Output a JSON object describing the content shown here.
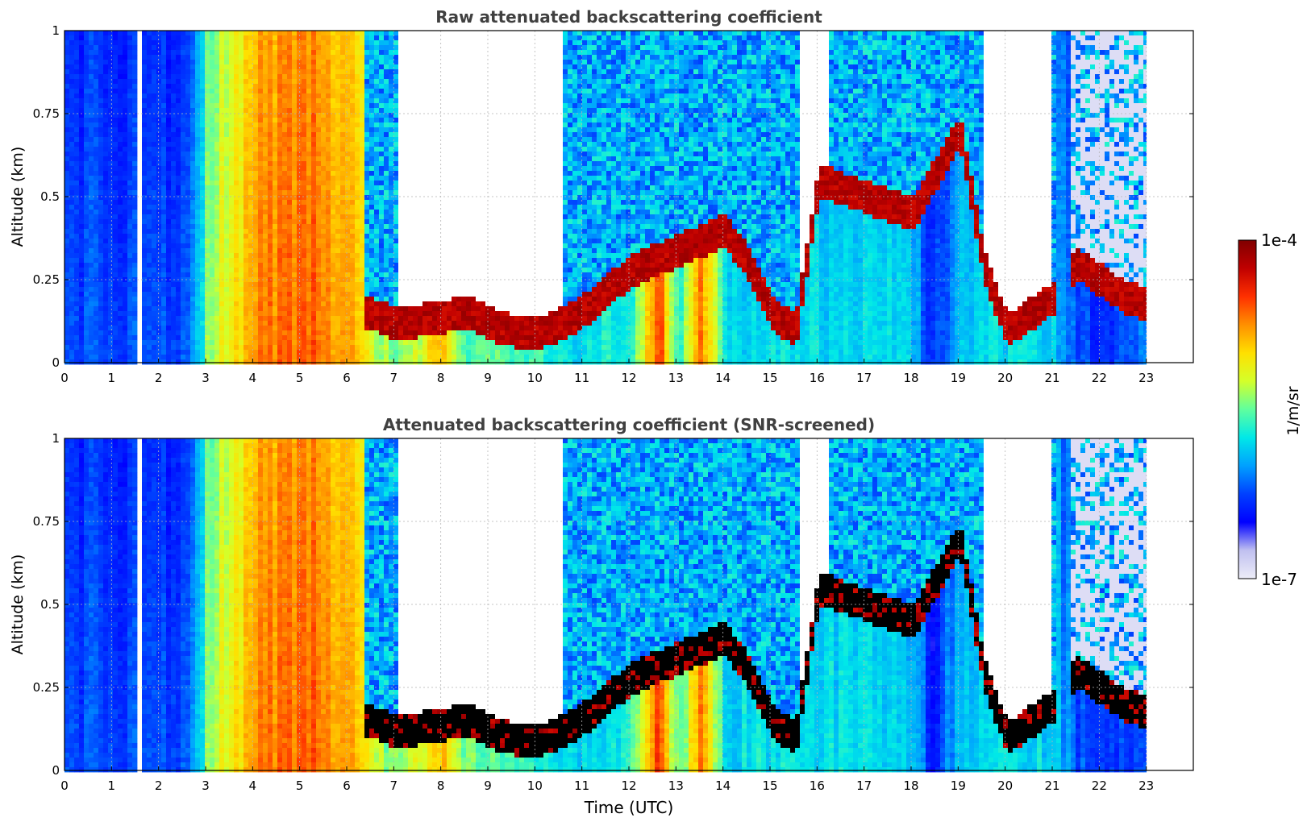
{
  "chart_data": [
    {
      "type": "heatmap",
      "title": "Raw attenuated backscattering coefficient",
      "xlabel": "",
      "ylabel": "Altitude (km)",
      "xlim": [
        0,
        24
      ],
      "ylim": [
        0,
        1
      ],
      "x_ticks": [
        "0",
        "1",
        "2",
        "3",
        "4",
        "5",
        "6",
        "7",
        "8",
        "9",
        "10",
        "11",
        "12",
        "13",
        "14",
        "15",
        "16",
        "17",
        "18",
        "19",
        "20",
        "21",
        "22",
        "23"
      ],
      "y_ticks": [
        "0",
        "0.25",
        "0.5",
        "0.75",
        "1"
      ],
      "grid": true,
      "data_end_hour": 23,
      "gap_hours": [
        [
          1.45,
          1.55
        ]
      ],
      "cloud_base_profile": {
        "hours": [
          6.5,
          7,
          7.5,
          8,
          8.5,
          9,
          9.5,
          10,
          10.5,
          11,
          11.5,
          12,
          14,
          14.5,
          15,
          15.5,
          16,
          17,
          18,
          19,
          19.5,
          20,
          20.5,
          21,
          21.5,
          22,
          22.5,
          23
        ],
        "altitude_km": [
          0.15,
          0.12,
          0.13,
          0.14,
          0.16,
          0.12,
          0.1,
          0.09,
          0.12,
          0.16,
          0.22,
          0.28,
          0.4,
          0.3,
          0.15,
          0.1,
          0.55,
          0.5,
          0.45,
          0.7,
          0.3,
          0.1,
          0.15,
          0.2,
          0.3,
          0.25,
          0.2,
          0.18
        ]
      },
      "clear_sky_intervals_hours": [
        [
          7.0,
          10.5
        ],
        [
          15.6,
          16.2
        ],
        [
          19.5,
          20.9
        ]
      ]
    },
    {
      "type": "heatmap",
      "title": "Attenuated backscattering coefficient (SNR-screened)",
      "xlabel": "Time (UTC)",
      "ylabel": "Altitude (km)",
      "xlim": [
        0,
        24
      ],
      "ylim": [
        0,
        1
      ],
      "x_ticks": [
        "0",
        "1",
        "2",
        "3",
        "4",
        "5",
        "6",
        "7",
        "8",
        "9",
        "10",
        "11",
        "12",
        "13",
        "14",
        "15",
        "16",
        "17",
        "18",
        "19",
        "20",
        "21",
        "22",
        "23"
      ],
      "y_ticks": [
        "0",
        "0.25",
        "0.5",
        "0.75",
        "1"
      ],
      "grid": true,
      "data_end_hour": 23,
      "gap_hours": [
        [
          1.45,
          1.55
        ]
      ],
      "screened_color": "#000000"
    }
  ],
  "colorbar": {
    "label": "1/m/sr",
    "min_label": "1e-7",
    "max_label": "1e-4",
    "colormap": [
      "#ededf8",
      "#c0c0f0",
      "#0000ff",
      "#0040ff",
      "#00a0ff",
      "#00e8e8",
      "#60ff9e",
      "#d4ff2a",
      "#ffe000",
      "#ff9000",
      "#ff3000",
      "#c00000",
      "#800000"
    ]
  }
}
